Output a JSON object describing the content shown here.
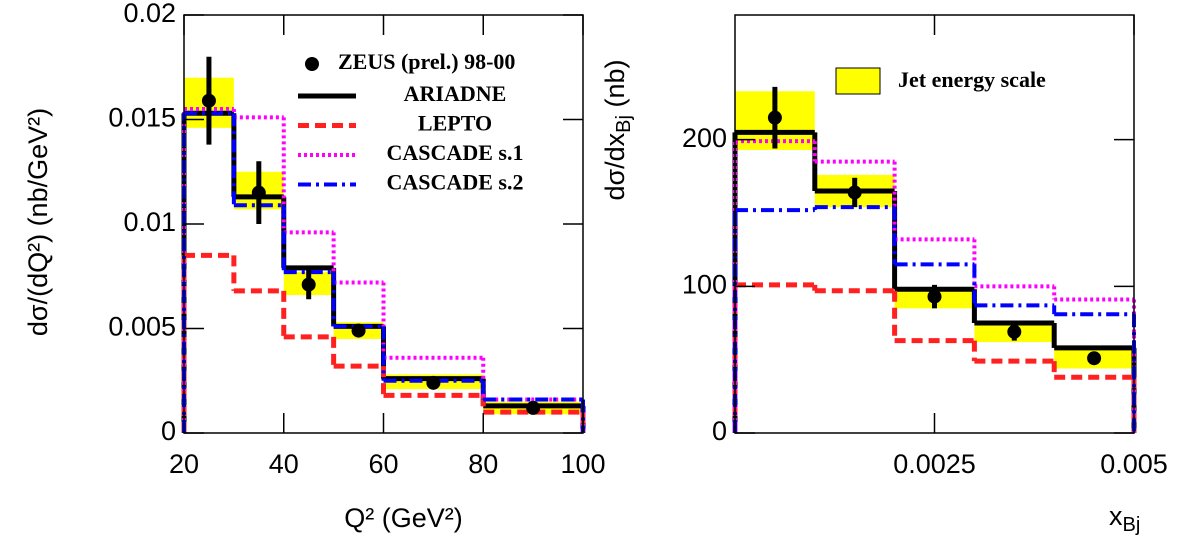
{
  "chart_data": [
    {
      "type": "histogram",
      "xlabel": "Q² (GeV²)",
      "ylabel": "dσ/(dQ²) (nb/GeV²)",
      "bins": [
        20,
        30,
        40,
        50,
        60,
        80,
        100
      ],
      "xlim": [
        20,
        100
      ],
      "xticks": [
        20,
        40,
        60,
        80,
        100
      ],
      "ylim": [
        0,
        0.02
      ],
      "yticks": [
        0,
        0.005,
        0.01,
        0.015,
        0.02
      ],
      "band": {
        "color": "#ffff00",
        "low": [
          0.0146,
          0.0107,
          0.0066,
          0.0045,
          0.0021,
          0.0009
        ],
        "high": [
          0.017,
          0.0125,
          0.0077,
          0.0053,
          0.0028,
          0.0015
        ]
      },
      "series": [
        {
          "name": "ARIADNE",
          "color": "#000000",
          "style": "solid",
          "values": [
            0.0153,
            0.0113,
            0.0079,
            0.0051,
            0.0026,
            0.0013
          ]
        },
        {
          "name": "LEPTO",
          "color": "#ff2020",
          "style": "dashed",
          "values": [
            0.0085,
            0.0068,
            0.0046,
            0.0032,
            0.0018,
            0.001
          ]
        },
        {
          "name": "CASCADE s.1",
          "color": "#ff00ff",
          "style": "dotted",
          "values": [
            0.0155,
            0.0151,
            0.0096,
            0.0072,
            0.0036,
            0.0016
          ]
        },
        {
          "name": "CASCADE s.2",
          "color": "#0000ff",
          "style": "dashdot",
          "values": [
            0.0153,
            0.0109,
            0.0077,
            0.0051,
            0.0025,
            0.0016
          ]
        }
      ],
      "points": {
        "name": "ZEUS (prel.) 98-00",
        "color": "#000000",
        "x": [
          25,
          35,
          45,
          55,
          70,
          90
        ],
        "values": [
          0.0159,
          0.0115,
          0.0071,
          0.0049,
          0.0024,
          0.0012
        ],
        "errors": [
          0.0021,
          0.0015,
          0.0007,
          0.0003,
          0.0002,
          0.0001
        ]
      }
    },
    {
      "type": "histogram",
      "xlabel": [
        "x",
        "Bj"
      ],
      "ylabel": [
        "dσ/dx",
        "Bj",
        " (nb)"
      ],
      "bins": [
        0,
        0.001,
        0.002,
        0.003,
        0.004,
        0.005
      ],
      "xlim": [
        0,
        0.005
      ],
      "xticks": [
        0.0025,
        0.005
      ],
      "ylim": [
        0,
        285
      ],
      "yticks": [
        0,
        100,
        200
      ],
      "band": {
        "name": "Jet energy scale",
        "color": "#ffff00",
        "low": [
          193,
          154,
          85,
          62,
          44
        ],
        "high": [
          233,
          176,
          99,
          76,
          57
        ]
      },
      "series": [
        {
          "color": "#000000",
          "style": "solid",
          "values": [
            205,
            165,
            98,
            75,
            58
          ]
        },
        {
          "color": "#ff2020",
          "style": "dashed",
          "values": [
            101,
            97,
            63,
            49,
            38
          ]
        },
        {
          "color": "#ff00ff",
          "style": "dotted",
          "values": [
            199,
            185,
            132,
            100,
            91
          ]
        },
        {
          "color": "#0000ff",
          "style": "dashdot",
          "values": [
            152,
            154,
            115,
            87,
            81
          ]
        }
      ],
      "points": {
        "color": "#000000",
        "x": [
          0.0005,
          0.0015,
          0.0025,
          0.0035,
          0.0045
        ],
        "values": [
          215,
          164,
          93,
          69,
          51
        ],
        "errors": [
          21,
          10,
          8,
          6,
          2
        ]
      }
    }
  ]
}
